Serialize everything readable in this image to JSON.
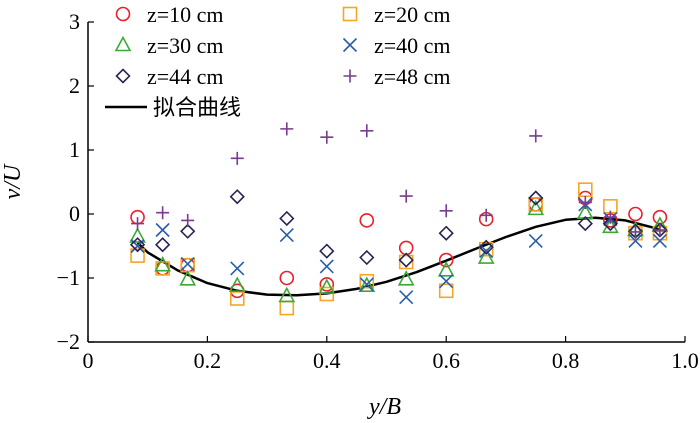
{
  "chart_data": {
    "type": "scatter",
    "xlabel": "y/B",
    "ylabel": "v/U",
    "xlim": [
      0,
      1.0
    ],
    "ylim": [
      -2,
      3
    ],
    "xticks": [
      "0",
      "0.2",
      "0.4",
      "0.6",
      "0.8",
      "1.0"
    ],
    "xtick_values": [
      0,
      0.2,
      0.4,
      0.6,
      0.8,
      1.0
    ],
    "yticks": [
      "−2",
      "−1",
      "0",
      "1",
      "2",
      "3"
    ],
    "ytick_values": [
      -2,
      -1,
      0,
      1,
      2,
      3
    ],
    "grid": false,
    "legend_position": "top-left",
    "series": [
      {
        "name": "z=10 cm",
        "marker": "circle",
        "color": "#e8202a",
        "x": [
          0.083,
          0.125,
          0.167,
          0.25,
          0.333,
          0.4,
          0.467,
          0.533,
          0.6,
          0.667,
          0.75,
          0.833,
          0.875,
          0.917,
          0.958
        ],
        "y": [
          -0.05,
          -0.85,
          -0.8,
          -1.2,
          -1.0,
          -1.1,
          -0.1,
          -0.53,
          -0.72,
          -0.08,
          0.15,
          0.25,
          -0.1,
          0.0,
          -0.05
        ]
      },
      {
        "name": "z=20 cm",
        "marker": "square",
        "color": "#f5a623",
        "x": [
          0.083,
          0.125,
          0.167,
          0.25,
          0.333,
          0.4,
          0.467,
          0.533,
          0.6,
          0.667,
          0.75,
          0.833,
          0.875,
          0.917,
          0.958
        ],
        "y": [
          -0.65,
          -0.85,
          -0.8,
          -1.32,
          -1.47,
          -1.25,
          -1.05,
          -0.75,
          -1.2,
          -0.55,
          0.15,
          0.38,
          0.12,
          -0.3,
          -0.3
        ]
      },
      {
        "name": "z=30 cm",
        "marker": "triangle",
        "color": "#3aaa35",
        "x": [
          0.083,
          0.125,
          0.167,
          0.25,
          0.333,
          0.4,
          0.467,
          0.533,
          0.6,
          0.667,
          0.75,
          0.833,
          0.875,
          0.917,
          0.958
        ],
        "y": [
          -0.35,
          -0.8,
          -1.02,
          -1.12,
          -1.28,
          -1.15,
          -1.12,
          -1.02,
          -0.88,
          -0.68,
          0.08,
          0.02,
          -0.2,
          -0.25,
          -0.18
        ]
      },
      {
        "name": "z=40 cm",
        "marker": "x",
        "color": "#2b5ea8",
        "x": [
          0.083,
          0.125,
          0.167,
          0.25,
          0.333,
          0.4,
          0.467,
          0.533,
          0.6,
          0.667,
          0.75,
          0.833,
          0.875,
          0.917,
          0.958
        ],
        "y": [
          -0.5,
          -0.25,
          -0.78,
          -0.85,
          -0.33,
          -0.82,
          -1.1,
          -1.3,
          -1.05,
          -0.58,
          -0.42,
          0.15,
          -0.08,
          -0.42,
          -0.42
        ]
      },
      {
        "name": "z=44 cm",
        "marker": "diamond",
        "color": "#2a2455",
        "x": [
          0.083,
          0.125,
          0.167,
          0.25,
          0.333,
          0.4,
          0.467,
          0.533,
          0.6,
          0.667,
          0.75,
          0.833,
          0.875,
          0.917,
          0.958
        ],
        "y": [
          -0.48,
          -0.48,
          -0.27,
          0.27,
          -0.07,
          -0.58,
          -0.68,
          -0.72,
          -0.3,
          -0.52,
          0.25,
          -0.15,
          -0.15,
          -0.27,
          -0.25
        ]
      },
      {
        "name": "z=48 cm",
        "marker": "plus",
        "color": "#7a3b8f",
        "x": [
          0.083,
          0.125,
          0.167,
          0.25,
          0.333,
          0.4,
          0.467,
          0.533,
          0.6,
          0.667,
          0.75,
          0.833,
          0.875,
          0.917,
          0.958
        ],
        "y": [
          -0.15,
          0.02,
          -0.1,
          0.87,
          1.33,
          1.2,
          1.3,
          0.28,
          0.05,
          -0.02,
          1.22,
          0.18,
          -0.05,
          -0.28,
          -0.25
        ]
      }
    ],
    "fit_curve": {
      "name": "拟合曲线",
      "color": "#000000",
      "x": [
        0.083,
        0.1,
        0.15,
        0.2,
        0.25,
        0.3,
        0.35,
        0.4,
        0.45,
        0.5,
        0.55,
        0.6,
        0.65,
        0.7,
        0.75,
        0.8,
        0.85,
        0.9,
        0.95,
        0.96
      ],
      "y": [
        -0.45,
        -0.6,
        -0.88,
        -1.08,
        -1.2,
        -1.26,
        -1.27,
        -1.24,
        -1.17,
        -1.06,
        -0.91,
        -0.73,
        -0.54,
        -0.36,
        -0.2,
        -0.09,
        -0.06,
        -0.1,
        -0.22,
        -0.26
      ]
    }
  }
}
